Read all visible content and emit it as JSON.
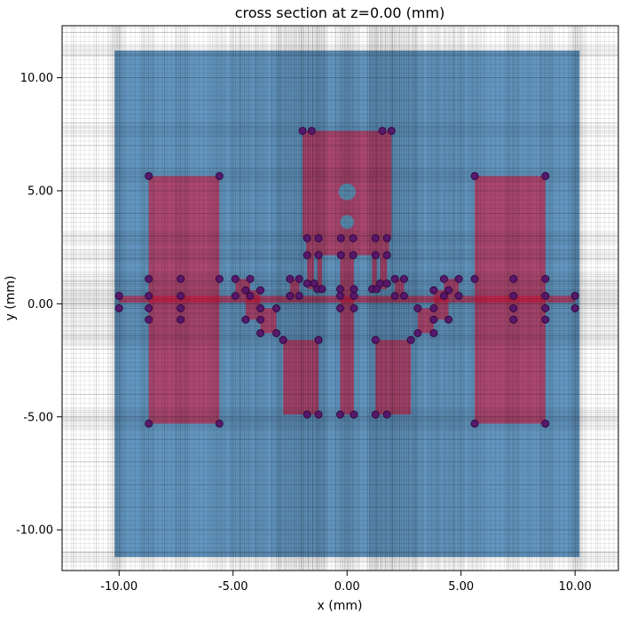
{
  "chart_data": {
    "type": "cross_section_mesh_plot",
    "title": "cross section at z=0.00 (mm)",
    "xlabel": "x (mm)",
    "ylabel": "y (mm)",
    "xlim": [
      -12.5,
      11.9
    ],
    "ylim": [
      -11.8,
      12.3
    ],
    "grid": true,
    "legend": "none",
    "xticks": {
      "values": [
        -10,
        -5,
        0,
        5,
        10
      ],
      "labels": [
        "-10.00",
        "-5.00",
        "0.00",
        "5.00",
        "10.00"
      ]
    },
    "yticks": {
      "values": [
        10,
        5,
        0,
        -5,
        -10
      ],
      "labels": [
        "10.00",
        "5.00",
        "0.00",
        "-5.00",
        "-10.00"
      ]
    },
    "substrate": {
      "x": [
        -10.2,
        10.2
      ],
      "y": [
        -11.2,
        11.2
      ],
      "color": "#4682B4",
      "alpha": 0.85
    },
    "metal": {
      "color": "#DC143C",
      "alpha": 0.6,
      "rects": [
        [
          -8.7,
          -5.3,
          -5.6,
          5.65
        ],
        [
          5.6,
          -5.3,
          8.7,
          5.65
        ],
        [
          -1.95,
          2.9,
          1.95,
          7.65
        ],
        [
          -1.8,
          2.15,
          1.85,
          2.9
        ],
        [
          -1.75,
          0.65,
          -1.45,
          2.15
        ],
        [
          1.45,
          0.65,
          1.75,
          2.15
        ],
        [
          -1.3,
          0.65,
          -1.1,
          2.15
        ],
        [
          1.1,
          0.65,
          1.3,
          2.15
        ],
        [
          -0.3,
          -4.9,
          0.3,
          2.15
        ],
        [
          -2.8,
          -4.9,
          -1.25,
          -1.6
        ],
        [
          1.25,
          -4.9,
          2.8,
          -1.6
        ],
        [
          -10.0,
          0.05,
          10.0,
          0.35
        ],
        [
          -4.9,
          0.35,
          -4.25,
          1.1
        ],
        [
          -4.45,
          -0.7,
          -3.8,
          0.6
        ],
        [
          -3.8,
          -1.3,
          -3.1,
          -0.2
        ],
        [
          4.25,
          0.35,
          4.9,
          1.1
        ],
        [
          3.8,
          -0.7,
          4.45,
          0.6
        ],
        [
          3.1,
          -1.3,
          3.8,
          -0.2
        ],
        [
          -2.5,
          0.35,
          -2.1,
          1.1
        ],
        [
          2.1,
          0.35,
          2.5,
          1.1
        ]
      ]
    },
    "holes": {
      "color": "#5E93B8",
      "items": [
        {
          "cx": 0,
          "cy": 4.95,
          "r": 0.37
        },
        {
          "cx": 0,
          "cy": 3.62,
          "r": 0.3
        }
      ]
    },
    "vertices": {
      "color": "#55156B",
      "edge": "#33083F",
      "radius": 4,
      "points": [
        [
          -10,
          0.35
        ],
        [
          -10,
          -0.2
        ],
        [
          10,
          0.35
        ],
        [
          10,
          -0.2
        ],
        [
          -8.7,
          5.65
        ],
        [
          -5.6,
          5.65
        ],
        [
          -8.7,
          -5.3
        ],
        [
          -5.6,
          -5.3
        ],
        [
          5.6,
          5.65
        ],
        [
          8.7,
          5.65
        ],
        [
          5.6,
          -5.3
        ],
        [
          8.7,
          -5.3
        ],
        [
          -8.7,
          1.1
        ],
        [
          -7.3,
          1.1
        ],
        [
          -8.7,
          0.35
        ],
        [
          -7.3,
          0.35
        ],
        [
          -8.7,
          -0.2
        ],
        [
          -7.3,
          -0.2
        ],
        [
          -8.7,
          -0.7
        ],
        [
          -7.3,
          -0.7
        ],
        [
          7.3,
          1.1
        ],
        [
          8.7,
          1.1
        ],
        [
          7.3,
          0.35
        ],
        [
          8.7,
          0.35
        ],
        [
          7.3,
          -0.2
        ],
        [
          8.7,
          -0.2
        ],
        [
          7.3,
          -0.7
        ],
        [
          8.7,
          -0.7
        ],
        [
          -5.6,
          1.1
        ],
        [
          5.6,
          1.1
        ],
        [
          -4.9,
          1.1
        ],
        [
          -4.25,
          1.1
        ],
        [
          -4.9,
          0.35
        ],
        [
          -4.25,
          0.35
        ],
        [
          -4.45,
          0.6
        ],
        [
          -3.8,
          0.6
        ],
        [
          -4.45,
          -0.7
        ],
        [
          -3.8,
          -0.7
        ],
        [
          -3.8,
          -0.2
        ],
        [
          -3.1,
          -0.2
        ],
        [
          -3.8,
          -1.3
        ],
        [
          -3.1,
          -1.3
        ],
        [
          4.25,
          1.1
        ],
        [
          4.9,
          1.1
        ],
        [
          4.25,
          0.35
        ],
        [
          4.9,
          0.35
        ],
        [
          3.8,
          0.6
        ],
        [
          4.45,
          0.6
        ],
        [
          3.8,
          -0.7
        ],
        [
          4.45,
          -0.7
        ],
        [
          3.1,
          -0.2
        ],
        [
          3.8,
          -0.2
        ],
        [
          3.1,
          -1.3
        ],
        [
          3.8,
          -1.3
        ],
        [
          -2.5,
          1.1
        ],
        [
          -2.1,
          1.1
        ],
        [
          -2.5,
          0.35
        ],
        [
          -2.1,
          0.35
        ],
        [
          2.1,
          1.1
        ],
        [
          2.5,
          1.1
        ],
        [
          2.1,
          0.35
        ],
        [
          2.5,
          0.35
        ],
        [
          -1.95,
          7.65
        ],
        [
          -1.55,
          7.65
        ],
        [
          1.55,
          7.65
        ],
        [
          1.95,
          7.65
        ],
        [
          -1.75,
          2.9
        ],
        [
          -1.25,
          2.9
        ],
        [
          -0.27,
          2.9
        ],
        [
          0.27,
          2.9
        ],
        [
          1.25,
          2.9
        ],
        [
          1.75,
          2.9
        ],
        [
          -1.75,
          2.15
        ],
        [
          -1.25,
          2.15
        ],
        [
          -0.27,
          2.15
        ],
        [
          0.27,
          2.15
        ],
        [
          1.25,
          2.15
        ],
        [
          1.75,
          2.15
        ],
        [
          -1.75,
          0.9
        ],
        [
          -1.45,
          0.9
        ],
        [
          1.45,
          0.9
        ],
        [
          1.75,
          0.9
        ],
        [
          -1.3,
          0.65
        ],
        [
          -1.1,
          0.65
        ],
        [
          -0.3,
          0.65
        ],
        [
          0.3,
          0.65
        ],
        [
          1.1,
          0.65
        ],
        [
          1.3,
          0.65
        ],
        [
          -0.3,
          0.35
        ],
        [
          0.3,
          0.35
        ],
        [
          -0.3,
          -0.2
        ],
        [
          0.3,
          -0.2
        ],
        [
          -2.8,
          -1.6
        ],
        [
          -1.25,
          -1.6
        ],
        [
          1.25,
          -1.6
        ],
        [
          2.8,
          -1.6
        ],
        [
          -1.75,
          -4.9
        ],
        [
          -1.25,
          -4.9
        ],
        [
          -0.3,
          -4.9
        ],
        [
          0.3,
          -4.9
        ],
        [
          1.25,
          -4.9
        ],
        [
          1.75,
          -4.9
        ]
      ]
    },
    "mesh": {
      "color": "#000000",
      "base_step": 0.2,
      "base_alpha": 0.13,
      "major_alpha": 0.2,
      "band_width": 0.5,
      "band_lines": 9,
      "band_alpha": 0.11,
      "x_bands": [
        -10.2,
        -10.0,
        -8.7,
        -7.3,
        -5.6,
        -4.9,
        -4.45,
        -3.8,
        -3.1,
        -2.8,
        -2.5,
        -2.2,
        -1.95,
        -1.75,
        -1.45,
        -1.25,
        -1.1,
        -0.3,
        0.0,
        0.3,
        1.1,
        1.25,
        1.45,
        1.75,
        1.95,
        2.2,
        2.5,
        2.8,
        3.1,
        3.8,
        4.45,
        4.9,
        5.6,
        7.3,
        8.7,
        10.0,
        10.2
      ],
      "y_bands": [
        11.2,
        7.65,
        5.65,
        2.9,
        2.15,
        1.1,
        0.65,
        0.35,
        0.05,
        -0.2,
        -0.7,
        -1.3,
        -1.6,
        -4.9,
        -5.3,
        -11.2
      ]
    }
  }
}
